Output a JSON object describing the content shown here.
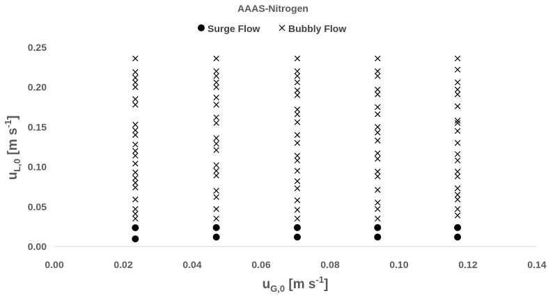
{
  "chart_data": {
    "type": "scatter",
    "title": "AAAS-Nitrogen",
    "xlabel": {
      "main": "u",
      "sub": "G,0",
      "rest": " [m s",
      "sup": "-1",
      "end": "]"
    },
    "ylabel": {
      "main": "u",
      "sub": "L,0",
      "rest": " [m s",
      "sup": "-1",
      "end": "]"
    },
    "xlim": [
      0,
      0.14
    ],
    "ylim": [
      0,
      0.25
    ],
    "x_ticks": [
      "0.00",
      "0.02",
      "0.04",
      "0.06",
      "0.08",
      "0.10",
      "0.12",
      "0.14"
    ],
    "y_ticks": [
      "0.00",
      "0.05",
      "0.10",
      "0.15",
      "0.20",
      "0.25"
    ],
    "grid": false,
    "legend_position": "top",
    "series": [
      {
        "name": "Surge Flow",
        "marker": "circle",
        "color": "#000000",
        "points": [
          [
            0.0235,
            0.0235
          ],
          [
            0.0235,
            0.0095
          ],
          [
            0.047,
            0.0237
          ],
          [
            0.047,
            0.0118
          ],
          [
            0.0705,
            0.0237
          ],
          [
            0.0705,
            0.0118
          ],
          [
            0.0938,
            0.0237
          ],
          [
            0.0938,
            0.0118
          ],
          [
            0.117,
            0.0237
          ],
          [
            0.117,
            0.0118
          ]
        ]
      },
      {
        "name": "Bubbly Flow",
        "marker": "x",
        "color": "#000000",
        "points": [
          [
            0.0235,
            0.236
          ],
          [
            0.0235,
            0.219
          ],
          [
            0.0235,
            0.212
          ],
          [
            0.0235,
            0.206
          ],
          [
            0.0235,
            0.2
          ],
          [
            0.0235,
            0.185
          ],
          [
            0.0235,
            0.178
          ],
          [
            0.0235,
            0.153
          ],
          [
            0.0235,
            0.146
          ],
          [
            0.0235,
            0.14
          ],
          [
            0.0235,
            0.128
          ],
          [
            0.0235,
            0.12
          ],
          [
            0.0235,
            0.114
          ],
          [
            0.0235,
            0.104
          ],
          [
            0.0235,
            0.093
          ],
          [
            0.0235,
            0.086
          ],
          [
            0.0235,
            0.08
          ],
          [
            0.0235,
            0.074
          ],
          [
            0.0235,
            0.059
          ],
          [
            0.0235,
            0.047
          ],
          [
            0.0235,
            0.041
          ],
          [
            0.0235,
            0.035
          ],
          [
            0.047,
            0.236
          ],
          [
            0.047,
            0.22
          ],
          [
            0.047,
            0.214
          ],
          [
            0.047,
            0.206
          ],
          [
            0.047,
            0.2
          ],
          [
            0.047,
            0.187
          ],
          [
            0.047,
            0.178
          ],
          [
            0.047,
            0.162
          ],
          [
            0.047,
            0.155
          ],
          [
            0.047,
            0.136
          ],
          [
            0.047,
            0.129
          ],
          [
            0.047,
            0.121
          ],
          [
            0.047,
            0.102
          ],
          [
            0.047,
            0.095
          ],
          [
            0.047,
            0.089
          ],
          [
            0.047,
            0.07
          ],
          [
            0.047,
            0.062
          ],
          [
            0.047,
            0.047
          ],
          [
            0.047,
            0.035
          ],
          [
            0.0705,
            0.236
          ],
          [
            0.0705,
            0.22
          ],
          [
            0.0705,
            0.214
          ],
          [
            0.0705,
            0.206
          ],
          [
            0.0705,
            0.196
          ],
          [
            0.0705,
            0.19
          ],
          [
            0.0705,
            0.172
          ],
          [
            0.0705,
            0.166
          ],
          [
            0.0705,
            0.156
          ],
          [
            0.0705,
            0.14
          ],
          [
            0.0705,
            0.13
          ],
          [
            0.0705,
            0.114
          ],
          [
            0.0705,
            0.108
          ],
          [
            0.0705,
            0.095
          ],
          [
            0.0705,
            0.082
          ],
          [
            0.0705,
            0.073
          ],
          [
            0.0705,
            0.058
          ],
          [
            0.0705,
            0.046
          ],
          [
            0.0705,
            0.035
          ],
          [
            0.0938,
            0.236
          ],
          [
            0.0938,
            0.22
          ],
          [
            0.0938,
            0.214
          ],
          [
            0.0938,
            0.197
          ],
          [
            0.0938,
            0.191
          ],
          [
            0.0938,
            0.175
          ],
          [
            0.0938,
            0.166
          ],
          [
            0.0938,
            0.15
          ],
          [
            0.0938,
            0.143
          ],
          [
            0.0938,
            0.133
          ],
          [
            0.0938,
            0.117
          ],
          [
            0.0938,
            0.11
          ],
          [
            0.0938,
            0.094
          ],
          [
            0.0938,
            0.088
          ],
          [
            0.0938,
            0.071
          ],
          [
            0.0938,
            0.055
          ],
          [
            0.0938,
            0.047
          ],
          [
            0.0938,
            0.035
          ],
          [
            0.117,
            0.236
          ],
          [
            0.117,
            0.222
          ],
          [
            0.117,
            0.206
          ],
          [
            0.117,
            0.197
          ],
          [
            0.117,
            0.191
          ],
          [
            0.117,
            0.176
          ],
          [
            0.117,
            0.158
          ],
          [
            0.117,
            0.155
          ],
          [
            0.117,
            0.145
          ],
          [
            0.117,
            0.13
          ],
          [
            0.117,
            0.116
          ],
          [
            0.117,
            0.108
          ],
          [
            0.117,
            0.094
          ],
          [
            0.117,
            0.088
          ],
          [
            0.117,
            0.073
          ],
          [
            0.117,
            0.065
          ],
          [
            0.117,
            0.059
          ],
          [
            0.117,
            0.047
          ],
          [
            0.117,
            0.039
          ]
        ]
      }
    ]
  }
}
